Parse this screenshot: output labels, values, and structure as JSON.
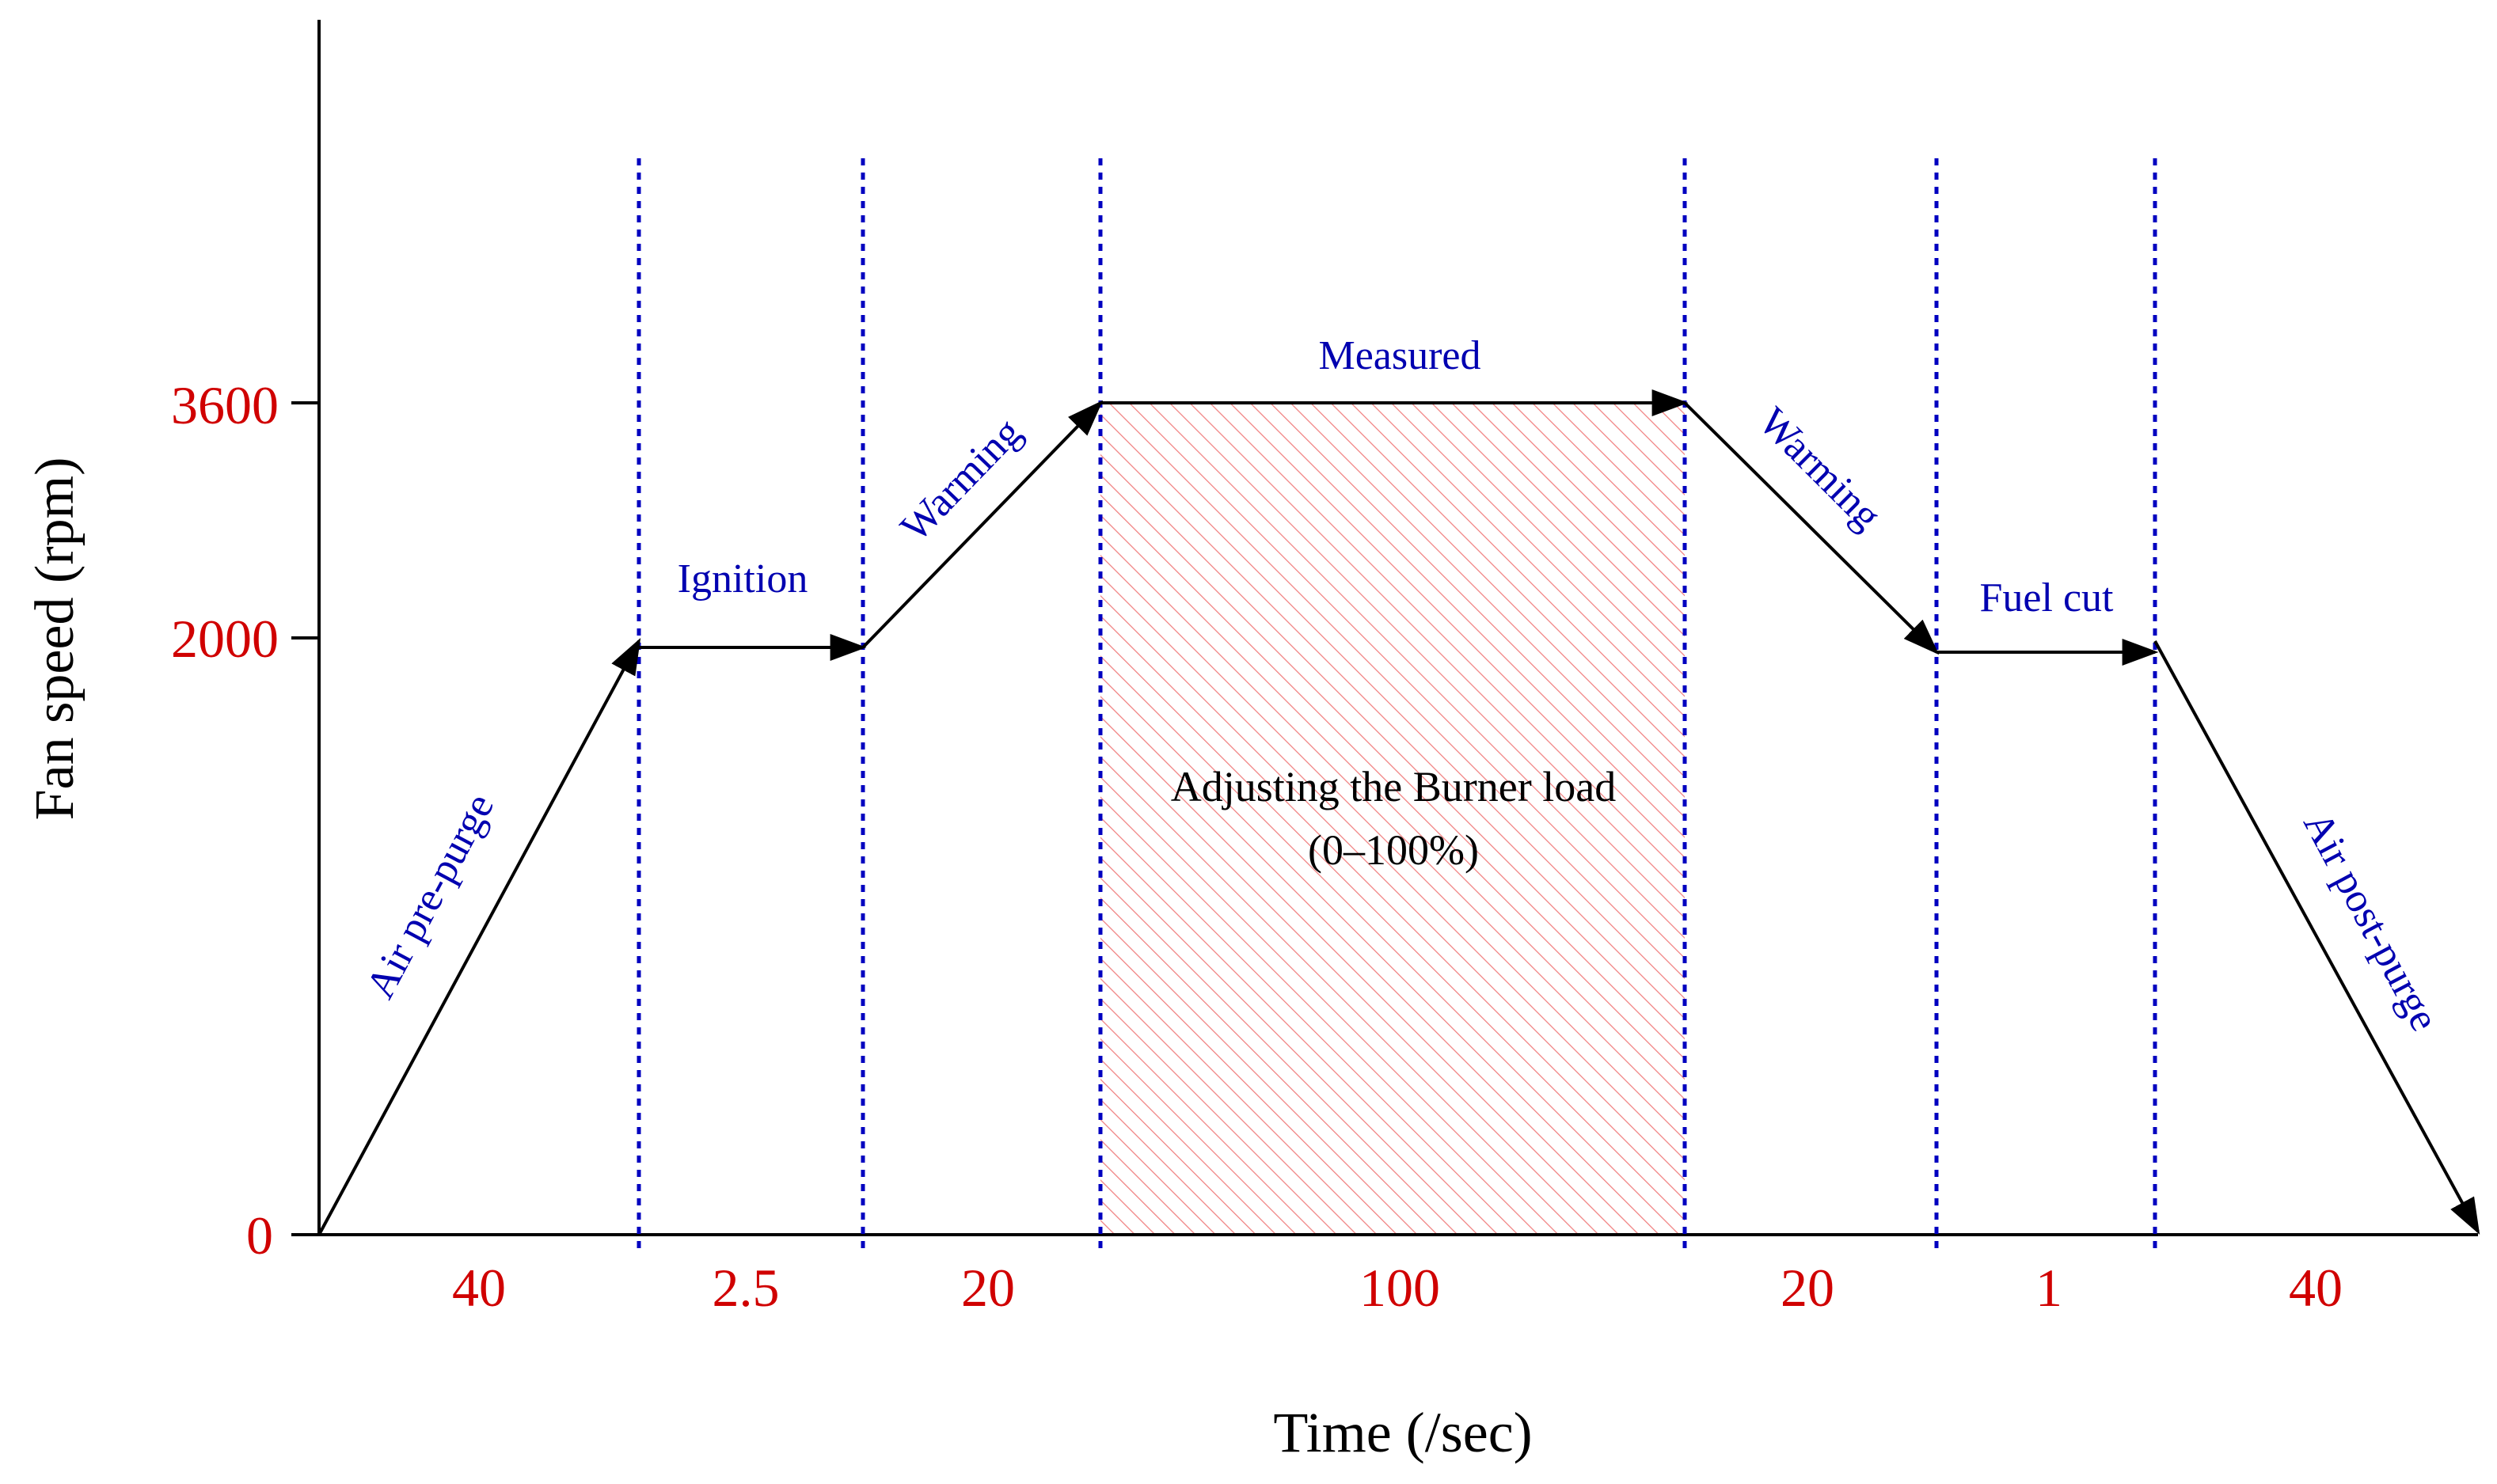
{
  "colors": {
    "axis": "#000000",
    "tick_text": "#d00000",
    "phase_label": "#0000b0",
    "divider": "#0000c0",
    "hatch": "#f08080",
    "arrow": "#000000",
    "measured_line": "#c00000",
    "center_text": "#000000"
  },
  "axes": {
    "ylabel": "Fan speed (rpm)",
    "xlabel": "Time (/sec)",
    "y_ticks": [
      "3600",
      "2000",
      "0"
    ]
  },
  "durations": [
    "40",
    "2.5",
    "20",
    "100",
    "20",
    "1",
    "40"
  ],
  "phases": {
    "air_pre_purge": "Air pre-purge",
    "ignition": "Ignition",
    "warming_up": "Warming",
    "measured": "Measured",
    "warming_down": "Warming",
    "fuel_cut": "Fuel cut",
    "air_post_purge": "Air post-purge"
  },
  "region": {
    "line1": "Adjusting the Burner load",
    "line2": "(0–100%)"
  }
}
